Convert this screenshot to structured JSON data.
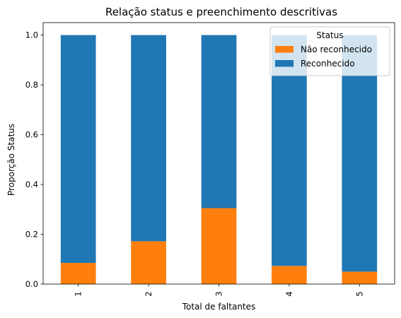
{
  "chart_data": {
    "type": "bar",
    "stacked": true,
    "title": "Relação status e preenchimento descritivas",
    "xlabel": "Total de faltantes",
    "ylabel": "Proporção Status",
    "categories": [
      "1",
      "2",
      "3",
      "4",
      "5"
    ],
    "ylim": [
      0,
      1.05
    ],
    "yticks": [
      0.0,
      0.2,
      0.4,
      0.6,
      0.8,
      1.0
    ],
    "ytick_labels": [
      "0.0",
      "0.2",
      "0.4",
      "0.6",
      "0.8",
      "1.0"
    ],
    "grid": false,
    "legend": {
      "title": "Status",
      "placement": "top-right"
    },
    "series": [
      {
        "name": "Não reconhecido",
        "color": "#ff7f0e",
        "values": [
          0.085,
          0.172,
          0.305,
          0.073,
          0.05
        ]
      },
      {
        "name": "Reconhecido",
        "color": "#1f77b4",
        "values": [
          0.915,
          0.828,
          0.695,
          0.927,
          0.95
        ]
      }
    ]
  }
}
